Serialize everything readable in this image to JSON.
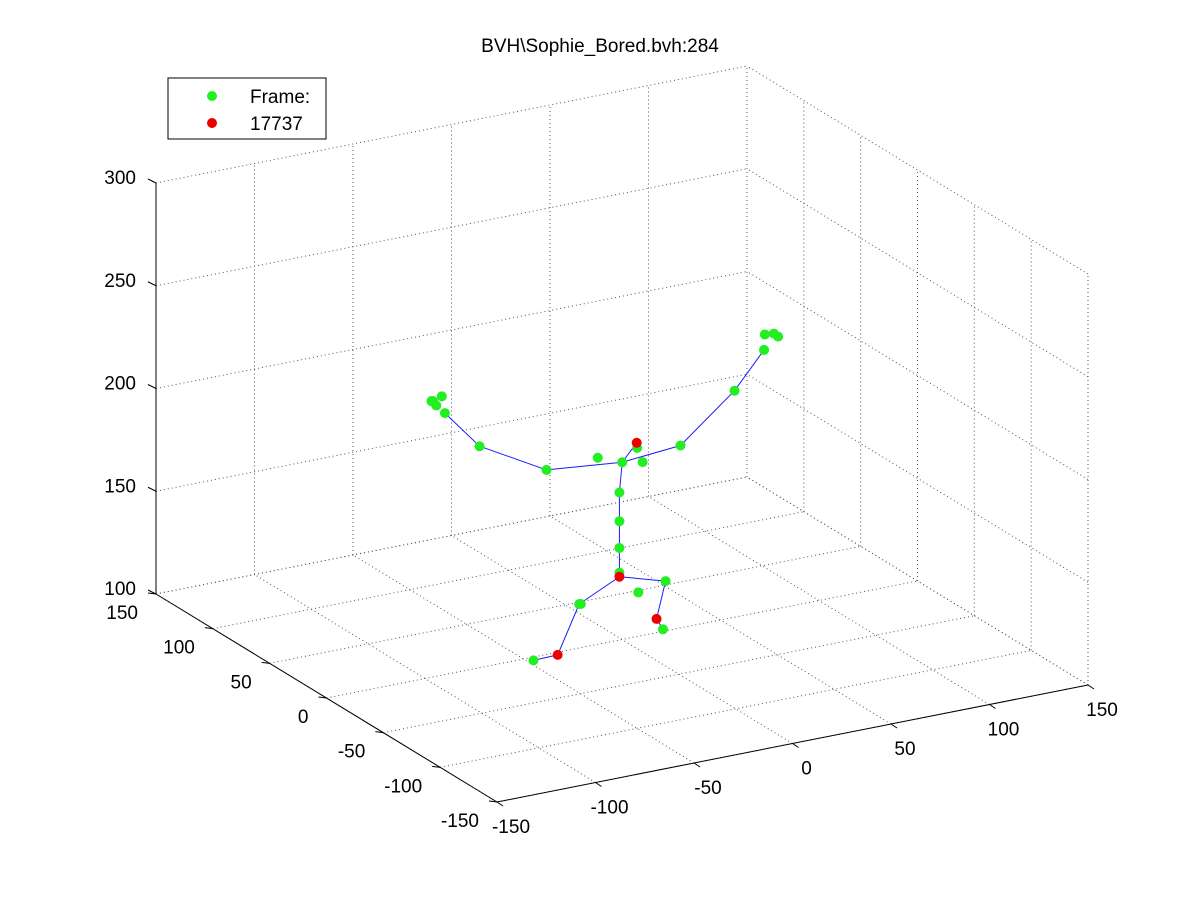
{
  "chart_data": {
    "type": "scatter",
    "projection": "3d",
    "title": "BVH\\Sophie_Bored.bvh:284",
    "xlim": [
      -150,
      150
    ],
    "ylim": [
      -150,
      150
    ],
    "zlim": [
      100,
      300
    ],
    "x_ticks": [
      "-150",
      "-100",
      "-50",
      "0",
      "50",
      "100",
      "150"
    ],
    "y_ticks": [
      "-150",
      "-100",
      "-50",
      "0",
      "50",
      "100",
      "150"
    ],
    "z_ticks": [
      "100",
      "150",
      "200",
      "250",
      "300"
    ],
    "grid": true,
    "legend_position": "top-left",
    "legend": [
      {
        "label": "Frame:",
        "color": "#00ff00"
      },
      {
        "label": "17737",
        "color": "#ff0000"
      }
    ],
    "colors": {
      "joint": "#22ee22",
      "highlight": "#ee0000",
      "bone": "#1a1aff"
    },
    "series": [
      {
        "name": "Frame:",
        "color": "#22ee22",
        "points": [
          [
            -20,
            3,
            120
          ],
          [
            -18,
            5,
            119
          ],
          [
            10,
            3,
            120
          ],
          [
            7,
            -6,
            187
          ],
          [
            -10,
            4,
            189
          ],
          [
            10,
            4,
            190
          ],
          [
            3,
            5,
            184
          ],
          [
            1,
            4,
            170
          ],
          [
            1,
            4,
            156
          ],
          [
            1,
            4,
            143
          ],
          [
            1,
            4,
            131
          ],
          [
            -36,
            4,
            188
          ],
          [
            -70,
            4,
            206
          ],
          [
            -87,
            5,
            225
          ],
          [
            -93,
            5,
            232
          ],
          [
            -92,
            4,
            230
          ],
          [
            -95,
            3,
            233
          ],
          [
            -88,
            6,
            233
          ],
          [
            32,
            4,
            187
          ],
          [
            60,
            5,
            208
          ],
          [
            75,
            5,
            225
          ],
          [
            80,
            5,
            232
          ],
          [
            81,
            3,
            231
          ],
          [
            76,
            6,
            232
          ],
          [
            -38,
            12,
            93
          ],
          [
            26,
            9,
            97
          ],
          [
            25,
            5,
            122
          ]
        ]
      },
      {
        "name": "17737",
        "color": "#ee0000",
        "points": [
          [
            4,
            -6,
            197
          ],
          [
            1,
            4,
            129
          ],
          [
            -24,
            15,
            92
          ],
          [
            21,
            6,
            104
          ]
        ]
      }
    ],
    "bones": [
      [
        [
          1,
          4,
          131
        ],
        [
          1,
          4,
          143
        ]
      ],
      [
        [
          1,
          4,
          143
        ],
        [
          1,
          4,
          156
        ]
      ],
      [
        [
          1,
          4,
          156
        ],
        [
          1,
          4,
          170
        ]
      ],
      [
        [
          1,
          4,
          170
        ],
        [
          3,
          5,
          184
        ]
      ],
      [
        [
          3,
          5,
          184
        ],
        [
          4,
          -6,
          197
        ]
      ],
      [
        [
          3,
          5,
          184
        ],
        [
          -36,
          4,
          188
        ]
      ],
      [
        [
          -36,
          4,
          188
        ],
        [
          -70,
          4,
          206
        ]
      ],
      [
        [
          -70,
          4,
          206
        ],
        [
          -87,
          5,
          225
        ]
      ],
      [
        [
          3,
          5,
          184
        ],
        [
          32,
          4,
          187
        ]
      ],
      [
        [
          32,
          4,
          187
        ],
        [
          60,
          5,
          208
        ]
      ],
      [
        [
          60,
          5,
          208
        ],
        [
          75,
          5,
          225
        ]
      ],
      [
        [
          1,
          4,
          129
        ],
        [
          -20,
          3,
          120
        ]
      ],
      [
        [
          -20,
          3,
          120
        ],
        [
          -24,
          15,
          92
        ]
      ],
      [
        [
          -24,
          15,
          92
        ],
        [
          -38,
          12,
          93
        ]
      ],
      [
        [
          1,
          4,
          129
        ],
        [
          25,
          5,
          122
        ]
      ],
      [
        [
          25,
          5,
          122
        ],
        [
          21,
          6,
          104
        ]
      ],
      [
        [
          21,
          6,
          104
        ],
        [
          26,
          9,
          97
        ]
      ]
    ]
  }
}
